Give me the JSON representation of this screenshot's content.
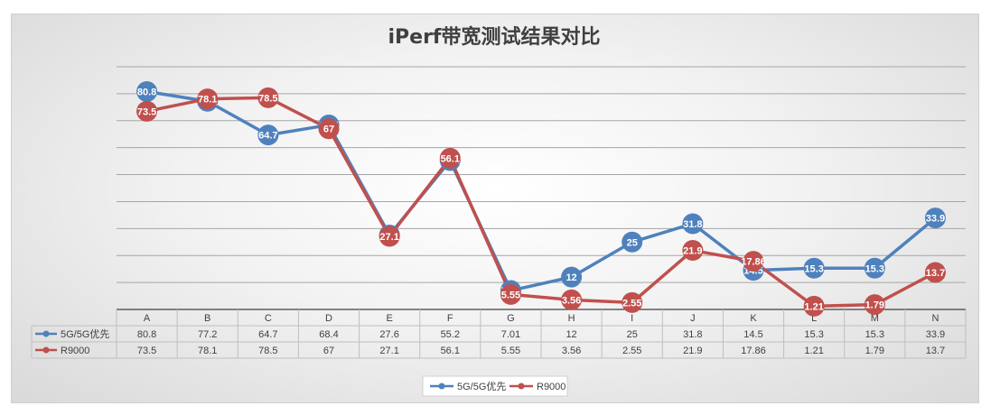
{
  "chart_data": {
    "type": "line",
    "title": "iPerf带宽测试结果对比",
    "categories": [
      "A",
      "B",
      "C",
      "D",
      "E",
      "F",
      "G",
      "H",
      "I",
      "J",
      "K",
      "L",
      "M",
      "N"
    ],
    "ylim": [
      0,
      90
    ],
    "grid": true,
    "legend_position": "bottom",
    "data_table": true,
    "series": [
      {
        "name": "5G/5G优先",
        "color": "#4f81bd",
        "values": [
          80.8,
          77.2,
          64.7,
          68.4,
          27.6,
          55.2,
          7.01,
          12,
          25,
          31.8,
          14.5,
          15.3,
          15.3,
          33.9
        ]
      },
      {
        "name": "R9000",
        "color": "#c0504d",
        "values": [
          73.5,
          78.1,
          78.5,
          67,
          27.1,
          56.1,
          5.55,
          3.56,
          2.55,
          21.9,
          17.86,
          1.21,
          1.79,
          13.7
        ]
      }
    ]
  }
}
